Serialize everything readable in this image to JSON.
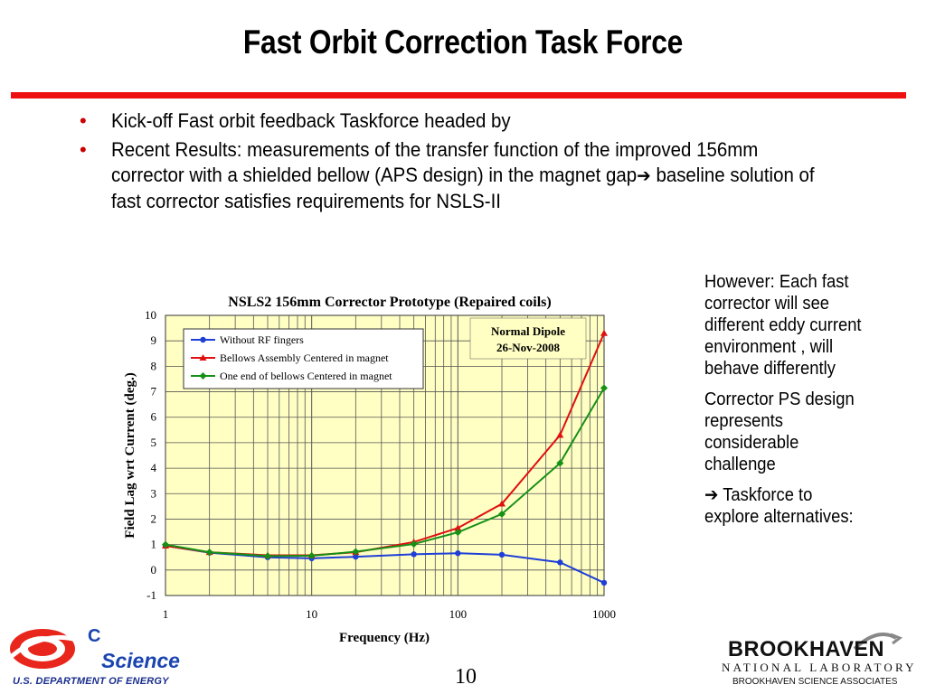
{
  "slide": {
    "title": "Fast Orbit Correction Task Force",
    "page_number": "10",
    "accent_color": "#ee1111"
  },
  "bullets": [
    {
      "text": "Kick-off Fast orbit feedback Taskforce headed by"
    },
    {
      "text_before": "Recent Results: measurements of the transfer function of the improved 156mm corrector with a shielded bellow (APS design) in the magnet gap",
      "arrow": "➔",
      "text_after": " baseline solution of fast corrector satisfies requirements for NSLS-II"
    }
  ],
  "side_notes": {
    "p1": "However: Each fast corrector will see different eddy current environment , will behave differently",
    "p2": "Corrector PS design represents considerable challenge",
    "p3_arrow": "➔",
    "p3": " Taskforce to explore alternatives:"
  },
  "logos": {
    "doe_word": "Science",
    "doe_letter": "C",
    "doe_caption": "U.S. DEPARTMENT OF ENERGY",
    "bnl_name": "BROOKHAVEN",
    "bnl_sub": "NATIONAL LABORATORY",
    "bnl_assoc": "BROOKHAVEN SCIENCE ASSOCIATES"
  },
  "chart_data": {
    "type": "line",
    "title": "NSLS2 156mm Corrector Prototype (Repaired coils)",
    "annotation": [
      "Normal Dipole",
      "26-Nov-2008"
    ],
    "xlabel": "Frequency (Hz)",
    "ylabel": "Field Lag wrt Current (deg.)",
    "x_scale": "log",
    "xlim": [
      1,
      1000
    ],
    "ylim": [
      -1,
      10
    ],
    "x_ticks": [
      "1",
      "10",
      "100",
      "1000"
    ],
    "y_ticks": [
      "-1",
      "0",
      "1",
      "2",
      "3",
      "4",
      "5",
      "6",
      "7",
      "8",
      "9",
      "10"
    ],
    "grid": true,
    "legend_position": "top-left",
    "plot_background": "#ffffc4",
    "x": [
      1,
      2,
      5,
      10,
      20,
      50,
      100,
      200,
      500,
      1000
    ],
    "series": [
      {
        "name": "Without RF fingers",
        "color": "#1f3fd8",
        "marker": "circle",
        "values": [
          0.95,
          0.68,
          0.5,
          0.46,
          0.52,
          0.62,
          0.66,
          0.6,
          0.3,
          -0.5
        ]
      },
      {
        "name": "Bellows Assembly Centered in magnet",
        "color": "#e01010",
        "marker": "triangle",
        "values": [
          0.95,
          0.7,
          0.58,
          0.58,
          0.7,
          1.1,
          1.65,
          2.6,
          5.3,
          9.3
        ]
      },
      {
        "name": "One end of bellows Centered in magnet",
        "color": "#169016",
        "marker": "diamond",
        "values": [
          1.0,
          0.7,
          0.55,
          0.56,
          0.72,
          1.02,
          1.48,
          2.2,
          4.2,
          7.15
        ]
      }
    ]
  }
}
